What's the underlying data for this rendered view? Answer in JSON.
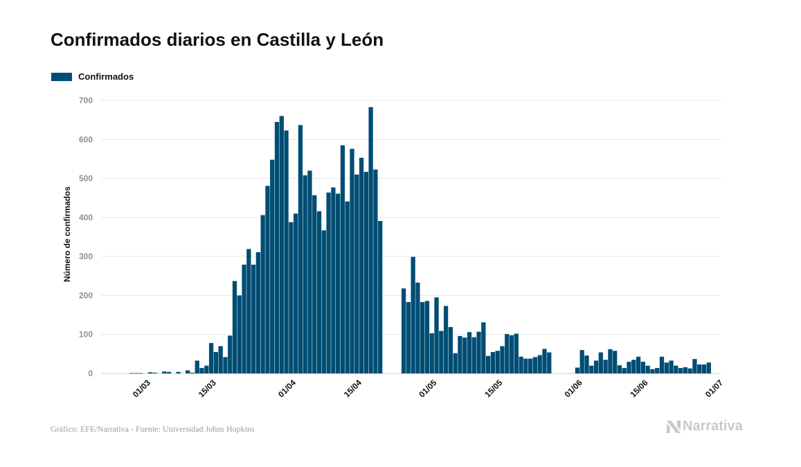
{
  "header": {
    "title": "Confirmados diarios en Castilla y León"
  },
  "legend": {
    "label": "Confirmados"
  },
  "footer": {
    "source": "Gráfico: EFE/Narrativa - Fuente: Universidad Johns Hopkins"
  },
  "brand": {
    "name": "Narrativa",
    "icon": "narrativa-logo-icon"
  },
  "colors": {
    "bar": "#004d74",
    "grid": "#e6e6e6",
    "axis_text": "#8f8f8f",
    "brand": "#c9c9c9"
  },
  "chart_data": {
    "type": "bar",
    "title": "Confirmados diarios en Castilla y León",
    "xlabel": "",
    "ylabel": "Número de confirmados",
    "ylim": [
      0,
      700
    ],
    "y_ticks": [
      0,
      100,
      200,
      300,
      400,
      500,
      600,
      700
    ],
    "x_range": [
      "2020-02-20",
      "2020-07-01"
    ],
    "x_ticks": [
      {
        "date": "2020-03-01",
        "label": "01/03"
      },
      {
        "date": "2020-03-15",
        "label": "15/03"
      },
      {
        "date": "2020-04-01",
        "label": "01/04"
      },
      {
        "date": "2020-04-15",
        "label": "15/04"
      },
      {
        "date": "2020-05-01",
        "label": "01/05"
      },
      {
        "date": "2020-05-15",
        "label": "15/05"
      },
      {
        "date": "2020-06-01",
        "label": "01/06"
      },
      {
        "date": "2020-06-15",
        "label": "15/06"
      },
      {
        "date": "2020-07-01",
        "label": "01/07"
      }
    ],
    "grid": true,
    "legend_position": "top-left",
    "series": [
      {
        "name": "Confirmados",
        "dates": [
          "2020-02-26",
          "2020-02-27",
          "2020-02-28",
          "2020-02-29",
          "2020-03-01",
          "2020-03-02",
          "2020-03-03",
          "2020-03-04",
          "2020-03-05",
          "2020-03-06",
          "2020-03-07",
          "2020-03-08",
          "2020-03-09",
          "2020-03-10",
          "2020-03-11",
          "2020-03-12",
          "2020-03-13",
          "2020-03-14",
          "2020-03-15",
          "2020-03-16",
          "2020-03-17",
          "2020-03-18",
          "2020-03-19",
          "2020-03-20",
          "2020-03-21",
          "2020-03-22",
          "2020-03-23",
          "2020-03-24",
          "2020-03-25",
          "2020-03-26",
          "2020-03-27",
          "2020-03-28",
          "2020-03-29",
          "2020-03-30",
          "2020-03-31",
          "2020-04-01",
          "2020-04-02",
          "2020-04-03",
          "2020-04-04",
          "2020-04-05",
          "2020-04-06",
          "2020-04-07",
          "2020-04-08",
          "2020-04-09",
          "2020-04-10",
          "2020-04-11",
          "2020-04-12",
          "2020-04-13",
          "2020-04-14",
          "2020-04-15",
          "2020-04-16",
          "2020-04-17",
          "2020-04-18",
          "2020-04-19",
          "2020-04-20",
          "2020-04-21",
          "2020-04-22",
          "2020-04-23",
          "2020-04-24",
          "2020-04-25",
          "2020-04-26",
          "2020-04-27",
          "2020-04-28",
          "2020-04-29",
          "2020-04-30",
          "2020-05-01",
          "2020-05-02",
          "2020-05-03",
          "2020-05-04",
          "2020-05-05",
          "2020-05-06",
          "2020-05-07",
          "2020-05-08",
          "2020-05-09",
          "2020-05-10",
          "2020-05-11",
          "2020-05-12",
          "2020-05-13",
          "2020-05-14",
          "2020-05-15",
          "2020-05-16",
          "2020-05-17",
          "2020-05-18",
          "2020-05-19",
          "2020-05-20",
          "2020-05-21",
          "2020-05-22",
          "2020-05-23",
          "2020-05-24",
          "2020-05-25",
          "2020-05-26",
          "2020-05-27",
          "2020-05-28",
          "2020-05-29",
          "2020-05-30",
          "2020-05-31",
          "2020-06-01",
          "2020-06-02",
          "2020-06-03",
          "2020-06-04",
          "2020-06-05",
          "2020-06-06",
          "2020-06-07",
          "2020-06-08",
          "2020-06-09",
          "2020-06-10",
          "2020-06-11",
          "2020-06-12",
          "2020-06-13",
          "2020-06-14",
          "2020-06-15",
          "2020-06-16",
          "2020-06-17",
          "2020-06-18",
          "2020-06-19",
          "2020-06-20",
          "2020-06-21",
          "2020-06-22",
          "2020-06-23",
          "2020-06-24",
          "2020-06-25",
          "2020-06-26",
          "2020-06-27",
          "2020-06-28"
        ],
        "values": [
          1,
          1,
          1,
          0,
          3,
          2,
          0,
          5,
          4,
          0,
          4,
          0,
          8,
          2,
          33,
          14,
          20,
          78,
          55,
          70,
          42,
          97,
          237,
          200,
          279,
          319,
          279,
          311,
          406,
          481,
          548,
          645,
          660,
          623,
          388,
          410,
          637,
          508,
          520,
          457,
          416,
          367,
          464,
          477,
          461,
          585,
          441,
          576,
          510,
          553,
          517,
          683,
          523,
          391,
          0,
          0,
          0,
          0,
          218,
          183,
          299,
          233,
          183,
          186,
          103,
          195,
          109,
          173,
          119,
          52,
          96,
          92,
          106,
          93,
          107,
          131,
          45,
          55,
          58,
          70,
          101,
          98,
          102,
          43,
          38,
          38,
          42,
          47,
          63,
          54,
          0,
          0,
          0,
          0,
          0,
          15,
          60,
          46,
          20,
          33,
          54,
          35,
          62,
          58,
          21,
          14,
          30,
          35,
          43,
          30,
          20,
          11,
          14,
          43,
          28,
          33,
          20,
          14,
          16,
          13,
          37,
          23,
          23,
          28
        ]
      }
    ]
  }
}
